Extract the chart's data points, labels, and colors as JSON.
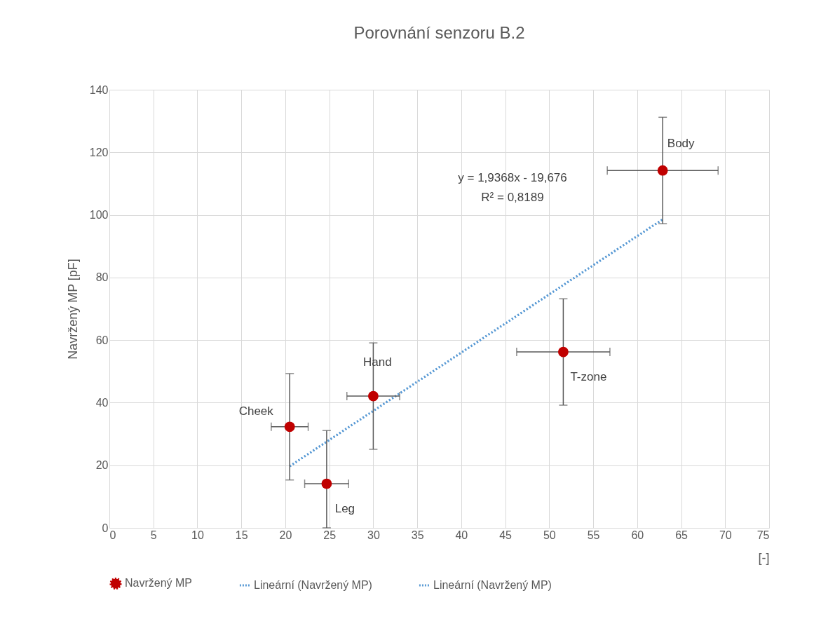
{
  "chart_data": {
    "type": "scatter",
    "title": "Porovnání senzoru B.2",
    "xlabel": "[-]",
    "ylabel": "Navržený MP [pF]",
    "xlim": [
      0,
      75
    ],
    "xticks": [
      0,
      5,
      10,
      15,
      20,
      25,
      30,
      35,
      40,
      45,
      50,
      55,
      60,
      65,
      70,
      75
    ],
    "ylim": [
      0,
      140
    ],
    "yticks": [
      0,
      20,
      40,
      60,
      80,
      100,
      120,
      140
    ],
    "grid": true,
    "legend": "bottom",
    "series": [
      {
        "name": "Navržený MP",
        "color": "#c00000",
        "marker": "circle",
        "x": [
          20.5,
          24.7,
          30,
          51.6,
          62.9
        ],
        "values": [
          32.3,
          14.1,
          42.1,
          56.2,
          114.2
        ],
        "errors": [
          17,
          [
            0,
            31.1
          ],
          17,
          17,
          17
        ],
        "xerrors": [
          2.1,
          2.5,
          3,
          5.3,
          6.3
        ]
      },
      {
        "name": "Lineární (Navržený MP)",
        "type": "line",
        "color": "#5b9bd5",
        "line_style": "dotted",
        "x": [
          20.5,
          62.9
        ],
        "values": [
          19.7,
          98.6
        ]
      },
      {
        "name": "Lineární (Navržený MP)",
        "type": "line",
        "color": "#5b9bd5",
        "line_style": "dotted",
        "x": [
          20.5,
          62.9
        ],
        "values": [
          19.7,
          98.6
        ]
      }
    ],
    "annotations": [
      {
        "text": "Cheek",
        "x": 20.5,
        "y": 32.3
      },
      {
        "text": "Leg",
        "x": 24.7,
        "y": 14.1
      },
      {
        "text": "Hand",
        "x": 30,
        "y": 42.1
      },
      {
        "text": "T-zone",
        "x": 51.6,
        "y": 56.2
      },
      {
        "text": "Body",
        "x": 62.9,
        "y": 114.2
      },
      "y = 1,9368x - 19,676",
      "R² = 0,8189"
    ]
  }
}
